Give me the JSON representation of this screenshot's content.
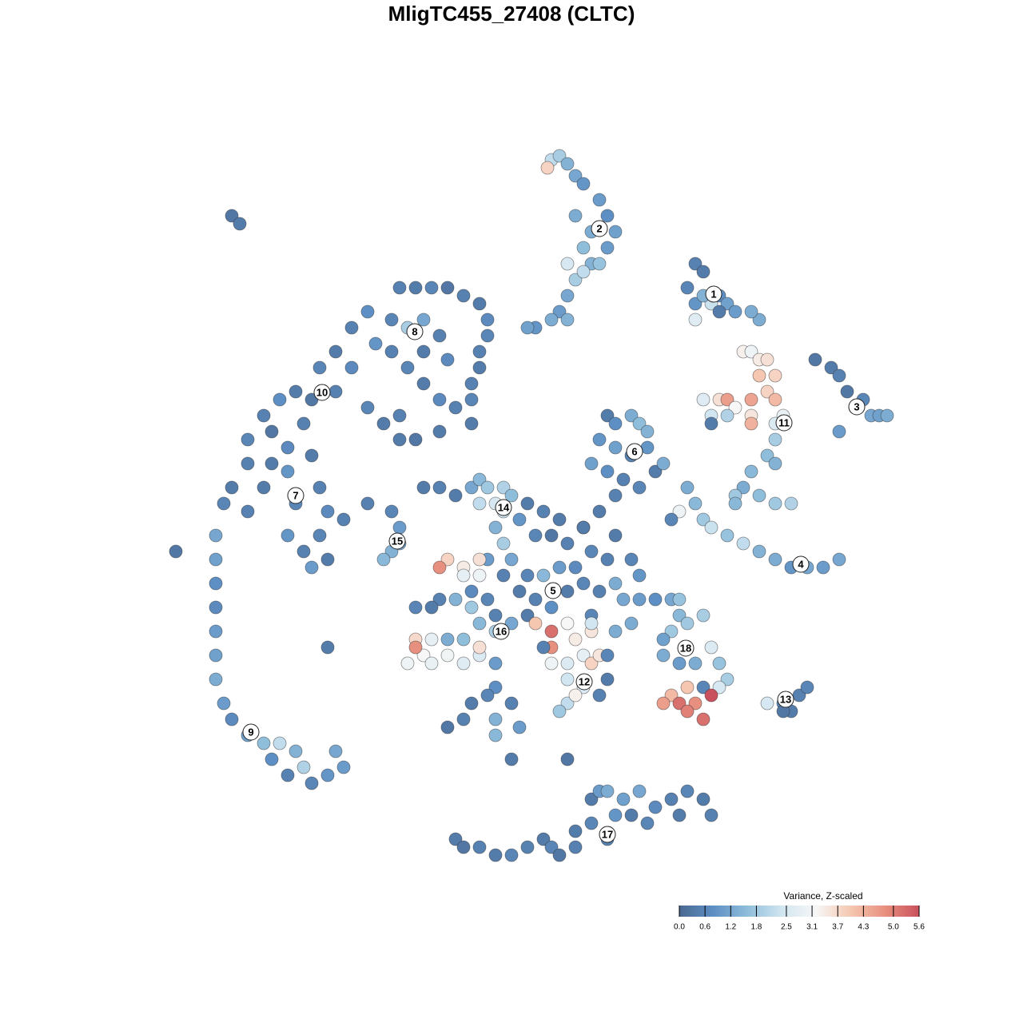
{
  "chart_data": {
    "type": "scatter",
    "title": "MligTC455_27408 (CLTC)",
    "xlim": [
      -45,
      45
    ],
    "ylim": [
      -45,
      47
    ],
    "x": [
      5,
      6,
      7,
      4.5,
      8,
      9,
      11,
      12,
      13,
      10,
      9,
      10,
      8,
      9,
      11,
      7,
      6,
      5,
      3,
      2,
      7,
      12,
      7,
      8,
      23,
      24,
      22,
      23,
      25,
      24,
      26,
      27,
      23,
      26,
      28,
      31,
      38,
      40,
      41,
      42,
      43,
      45,
      46,
      41,
      44,
      47,
      29,
      30,
      31,
      32,
      31,
      33,
      26,
      27,
      28,
      30,
      30,
      32,
      33,
      24,
      25,
      27,
      30,
      33,
      34,
      33,
      32,
      33,
      30,
      29,
      28,
      31,
      33,
      35,
      25,
      22,
      23,
      24,
      25,
      27,
      29,
      31,
      33,
      35,
      37,
      39,
      41,
      21,
      20,
      12,
      13,
      15,
      16,
      17,
      11,
      13,
      15,
      17,
      18,
      10,
      12,
      14,
      16,
      19,
      13,
      11,
      9,
      -14,
      -12,
      -10,
      -8,
      -6,
      -4,
      -3,
      -3,
      -4,
      -4,
      -5,
      -5,
      -5,
      -7,
      -9,
      -11,
      -13,
      -15,
      -17,
      -15,
      -13,
      -11,
      -9,
      -8,
      -11,
      -18,
      -20,
      -22,
      -24,
      -20,
      -22,
      -25,
      -27,
      -29,
      -31,
      -33,
      -30,
      -26,
      -28,
      -30,
      -33,
      -35,
      -36,
      -33,
      -31,
      -28,
      -25,
      -27,
      -24,
      -23,
      -24,
      -26,
      -28,
      -25,
      -23,
      -21,
      -18,
      -16,
      -14,
      -9,
      -14,
      -12,
      -37,
      -37,
      -37,
      -37,
      -37,
      -37,
      -37,
      -36,
      -35,
      -33,
      -31,
      -30,
      -29,
      -27,
      -28,
      -26,
      -25,
      -23,
      -22,
      -21,
      -42,
      -23,
      -18,
      -15,
      -14,
      -14,
      -15,
      -16,
      -5,
      -4,
      -3,
      -1,
      0,
      -2,
      -4,
      -1,
      -2,
      -7,
      -9,
      -11,
      1,
      2,
      4,
      6,
      3,
      5,
      7,
      9,
      10,
      12,
      8,
      6,
      4,
      2,
      0,
      -1,
      1,
      3,
      5,
      7,
      9,
      11,
      13,
      14,
      16,
      15,
      13,
      10,
      -3,
      -5,
      -3,
      -1,
      -2,
      -8,
      -9,
      -6,
      -4,
      -4,
      -6,
      -9,
      -10,
      -12,
      -7,
      -5,
      -4,
      -2,
      0,
      -6,
      -8,
      -10,
      -12,
      -11,
      -13,
      -10,
      -8,
      -6,
      -4,
      -4,
      -12,
      -2,
      -2,
      0,
      -3,
      -5,
      -6,
      -8,
      -2,
      -2,
      0,
      2,
      3,
      5,
      5,
      7,
      8,
      9,
      7,
      10,
      9,
      7,
      7,
      6,
      8,
      11,
      12,
      11,
      10,
      12,
      4,
      5,
      10,
      16,
      18,
      20,
      21,
      20,
      22,
      24,
      21,
      19,
      19,
      21,
      23,
      25,
      26,
      27,
      26,
      24,
      22,
      20,
      19,
      21,
      23,
      25,
      24,
      22,
      15,
      32,
      34,
      35,
      36,
      37,
      34,
      -7,
      -6,
      -4,
      -2,
      0,
      2,
      4,
      5,
      6,
      8,
      8,
      10,
      12,
      13,
      14,
      16,
      15,
      17,
      18,
      20,
      21,
      22,
      24,
      25,
      10,
      11,
      12,
      -35,
      -34,
      7,
      1,
      30,
      28,
      13
    ],
    "y": [
      44,
      44.5,
      43.5,
      43,
      42,
      41,
      39,
      37,
      35,
      35,
      33,
      31,
      29,
      30,
      31,
      27,
      25,
      24,
      23,
      23,
      24,
      33,
      31,
      37,
      31,
      30,
      28,
      26,
      26,
      27,
      27,
      26,
      24,
      25,
      25,
      24,
      19,
      18,
      17,
      15,
      13,
      12,
      12,
      10,
      14,
      12,
      20,
      20,
      19,
      19,
      17,
      17,
      14,
      14,
      13,
      14,
      12,
      15,
      14,
      14,
      12,
      12,
      11,
      11,
      12,
      9,
      7,
      6,
      5,
      3,
      2,
      2,
      1,
      1,
      11,
      3,
      1,
      -1,
      -2,
      -3,
      -4,
      -5,
      -6,
      -7,
      -7,
      -7,
      -6,
      0,
      -1,
      12,
      11,
      12,
      11,
      10,
      9,
      8,
      7,
      8,
      5,
      6,
      5,
      4,
      3,
      6,
      2,
      0,
      -2,
      28,
      28,
      28,
      28,
      27,
      26,
      24,
      22,
      20,
      18,
      16,
      14,
      11,
      13,
      14,
      16,
      18,
      20,
      21,
      24,
      23,
      24,
      22,
      19,
      20,
      25,
      23,
      20,
      18,
      18,
      15,
      14,
      15,
      14,
      12,
      9,
      10,
      11,
      8,
      6,
      6,
      3,
      1,
      0,
      3,
      5,
      7,
      1,
      3,
      0,
      -3,
      -5,
      -3,
      -7,
      -6,
      -1,
      13,
      11,
      12,
      10,
      9,
      9,
      -3,
      -6,
      -9,
      -12,
      -15,
      -18,
      -21,
      -24,
      -26,
      -28,
      -29,
      -31,
      -29,
      -30,
      -33,
      -32,
      -34,
      -33,
      -30,
      -32,
      -5,
      -17,
      1,
      0,
      -2,
      -4,
      -5,
      -6,
      3,
      4,
      3,
      3,
      2,
      1,
      1,
      0,
      -2,
      2,
      3,
      3,
      -1,
      1,
      0,
      -1,
      -3,
      -3,
      -4,
      -2,
      -5,
      -6,
      -7,
      -7,
      -8,
      -8,
      -6,
      -8,
      -10,
      -11,
      -12,
      -10,
      -9,
      -10,
      -9,
      -11,
      -8,
      -6,
      -3,
      -13,
      -11,
      -10,
      -6,
      -4,
      -13,
      -6,
      -7,
      -7,
      -6,
      -8,
      -8,
      -11,
      -12,
      -12,
      -11,
      -12,
      -14,
      -15,
      -14,
      -16,
      -16,
      -16,
      -16,
      -18,
      -19,
      -19,
      -18,
      -19,
      -18,
      -17,
      -17,
      -19,
      -22,
      -24,
      -23,
      -24,
      -26,
      -27,
      -26,
      -28,
      -31,
      -13,
      -14,
      -15,
      -17,
      -14,
      -16,
      -18,
      -19,
      -19,
      -22,
      -21,
      -24,
      -25,
      -23,
      -18,
      -21,
      -23,
      -15,
      -18,
      -17,
      -19,
      -14,
      -11,
      -11,
      -11,
      -13,
      -15,
      -14,
      -13,
      -11,
      -16,
      -18,
      -19,
      -19,
      -17,
      -19,
      -21,
      -22,
      -22,
      -22,
      -23,
      -24,
      -24,
      -24,
      -23,
      -26,
      -25,
      -14,
      -24,
      -24,
      -25,
      -23,
      -22,
      -25,
      -41,
      -42,
      -42,
      -43,
      -43,
      -42,
      -41,
      -42,
      -43,
      -42,
      -40,
      -39,
      -41,
      -38,
      -36,
      -35,
      -38,
      -39,
      -37,
      -36,
      -38,
      -35,
      -36,
      -38,
      -36,
      -35,
      -35,
      37,
      36,
      -31,
      -27,
      25,
      1,
      -15
    ],
    "values": [
      2.2,
      1.9,
      1.4,
      3.8,
      1.2,
      0.9,
      1.0,
      0.8,
      1.1,
      1.3,
      1.6,
      1.4,
      1.9,
      2.2,
      1.7,
      1.2,
      1.0,
      1.3,
      0.9,
      1.1,
      1.4,
      1.0,
      2.5,
      1.3,
      0.5,
      0.4,
      0.6,
      0.9,
      2.3,
      1.4,
      0.8,
      1.1,
      2.7,
      0.4,
      1.0,
      1.3,
      0.3,
      0.4,
      0.5,
      0.3,
      1.0,
      1.2,
      1.1,
      1.0,
      0.6,
      1.3,
      3.3,
      3.0,
      3.4,
      3.6,
      4.0,
      3.8,
      3.6,
      4.6,
      3.2,
      4.5,
      3.5,
      3.8,
      4.2,
      2.7,
      2.4,
      2.0,
      4.3,
      2.6,
      2.9,
      1.9,
      1.6,
      1.4,
      1.5,
      1.3,
      1.8,
      1.6,
      1.8,
      2.0,
      0.4,
      1.3,
      1.5,
      1.8,
      2.3,
      1.7,
      2.2,
      1.4,
      1.3,
      0.9,
      1.2,
      1.0,
      1.2,
      3.0,
      0.6,
      0.4,
      0.8,
      1.3,
      1.6,
      1.4,
      0.9,
      1.1,
      0.5,
      0.9,
      0.4,
      1.1,
      0.8,
      0.5,
      0.6,
      1.3,
      0.5,
      0.4,
      0.5,
      0.5,
      0.4,
      0.6,
      0.3,
      0.5,
      0.4,
      0.7,
      0.6,
      0.5,
      0.4,
      0.5,
      0.6,
      0.4,
      0.5,
      0.7,
      0.4,
      0.6,
      0.5,
      0.9,
      0.6,
      1.9,
      1.2,
      0.5,
      0.7,
      0.4,
      0.8,
      0.5,
      0.4,
      0.6,
      0.7,
      0.5,
      0.3,
      0.4,
      0.8,
      0.5,
      0.6,
      0.3,
      0.5,
      0.7,
      0.4,
      0.5,
      0.4,
      0.6,
      0.5,
      0.4,
      0.9,
      0.4,
      0.6,
      0.5,
      0.7,
      0.6,
      0.5,
      0.9,
      1.0,
      0.4,
      0.5,
      0.6,
      0.4,
      0.5,
      0.4,
      0.4,
      0.3,
      1.2,
      1.1,
      0.8,
      0.7,
      1.0,
      1.1,
      1.3,
      1.0,
      0.7,
      1.1,
      1.6,
      0.8,
      2.2,
      1.4,
      0.5,
      2.0,
      0.6,
      0.9,
      1.2,
      1.0,
      0.3,
      0.4,
      0.5,
      0.6,
      1.0,
      1.2,
      1.4,
      1.5,
      1.2,
      1.5,
      1.8,
      2.0,
      1.6,
      2.5,
      2.2,
      2.3,
      1.4,
      0.4,
      0.5,
      0.4,
      0.9,
      0.4,
      0.5,
      0.4,
      0.6,
      0.3,
      0.5,
      0.4,
      0.6,
      0.5,
      0.7,
      1.0,
      1.5,
      0.6,
      1.2,
      0.5,
      0.4,
      0.5,
      0.8,
      0.4,
      0.6,
      0.5,
      1.3,
      1.2,
      0.9,
      0.6,
      0.4,
      0.6,
      0.6,
      0.7,
      1.0,
      1.9,
      0.5,
      3.8,
      4.8,
      3.4,
      3.6,
      3.0,
      2.8,
      0.5,
      0.4,
      0.6,
      1.4,
      1.8,
      1.5,
      1.9,
      1.2,
      1.6,
      1.3,
      2.8,
      3.7,
      3.2,
      3.0,
      2.9,
      3.1,
      2.7,
      2.6,
      3.6,
      4.8,
      1.0,
      0.8,
      0.5,
      0.6,
      0.4,
      0.5,
      0.3,
      1.4,
      1.5,
      0.4,
      0.4,
      4.0,
      5.2,
      4.8,
      3.2,
      3.4,
      2.8,
      2.6,
      3.8,
      2.6,
      2.4,
      2.2,
      1.8,
      3.3,
      3.5,
      0.4,
      0.5,
      3.5,
      0.6,
      0.5,
      3.0,
      2.4,
      1.0,
      0.8,
      1.2,
      1.5,
      1.8,
      1.8,
      1.9,
      1.7,
      1.1,
      1.3,
      1.0,
      1.3,
      2.6,
      1.7,
      1.9,
      2.5,
      0.6,
      4.0,
      4.2,
      4.6,
      5.2,
      4.8,
      5.6,
      5.2,
      5.0,
      1.3,
      2.5,
      0.6,
      0.4,
      0.5,
      0.6,
      0.3,
      0.4,
      0.3,
      0.5,
      0.4,
      0.6,
      0.5,
      0.4,
      0.6,
      0.3,
      0.5,
      0.4,
      0.6,
      0.5,
      0.9,
      1.1,
      1.2,
      0.4,
      0.6,
      0.7,
      0.5,
      0.4,
      0.6,
      0.4,
      0.5,
      0.4,
      1.0,
      1.3,
      0.3,
      0.4,
      0.3,
      1.0,
      1.3,
      1.5,
      1.3
    ],
    "clusters": {
      "labels": [
        "1",
        "2",
        "3",
        "4",
        "5",
        "6",
        "7",
        "8",
        "9",
        "10",
        "11",
        "12",
        "13",
        "14",
        "15",
        "16",
        "17",
        "18"
      ],
      "x": [
        25.3,
        11.0,
        43.2,
        36.2,
        5.2,
        15.4,
        -27.0,
        -12.1,
        -32.6,
        -23.7,
        34.1,
        9.1,
        34.3,
        -1.0,
        -14.3,
        -1.3,
        12.0,
        21.8
      ],
      "y": [
        27.2,
        35.4,
        13.1,
        -6.6,
        -9.9,
        7.5,
        2.0,
        22.5,
        -27.6,
        14.9,
        11.1,
        -21.3,
        -23.5,
        0.5,
        -3.7,
        -15.0,
        -40.4,
        -17.1
      ]
    },
    "colorbar": {
      "title": "Variance, Z-scaled",
      "clim": [
        0,
        5.6
      ],
      "colorscale": [
        "#4a6991",
        "#5e8fc4",
        "#8fbedb",
        "#d2e6f1",
        "#f7f7f7",
        "#f5c7b0",
        "#e8907f",
        "#c9505d"
      ],
      "ticks": [
        {
          "value": 0,
          "label": "0.0"
        },
        0.6,
        1.2,
        1.8,
        2.5,
        3.1,
        3.7,
        4.3,
        {
          "value": 5,
          "label": "5.0"
        },
        5.6
      ]
    }
  }
}
